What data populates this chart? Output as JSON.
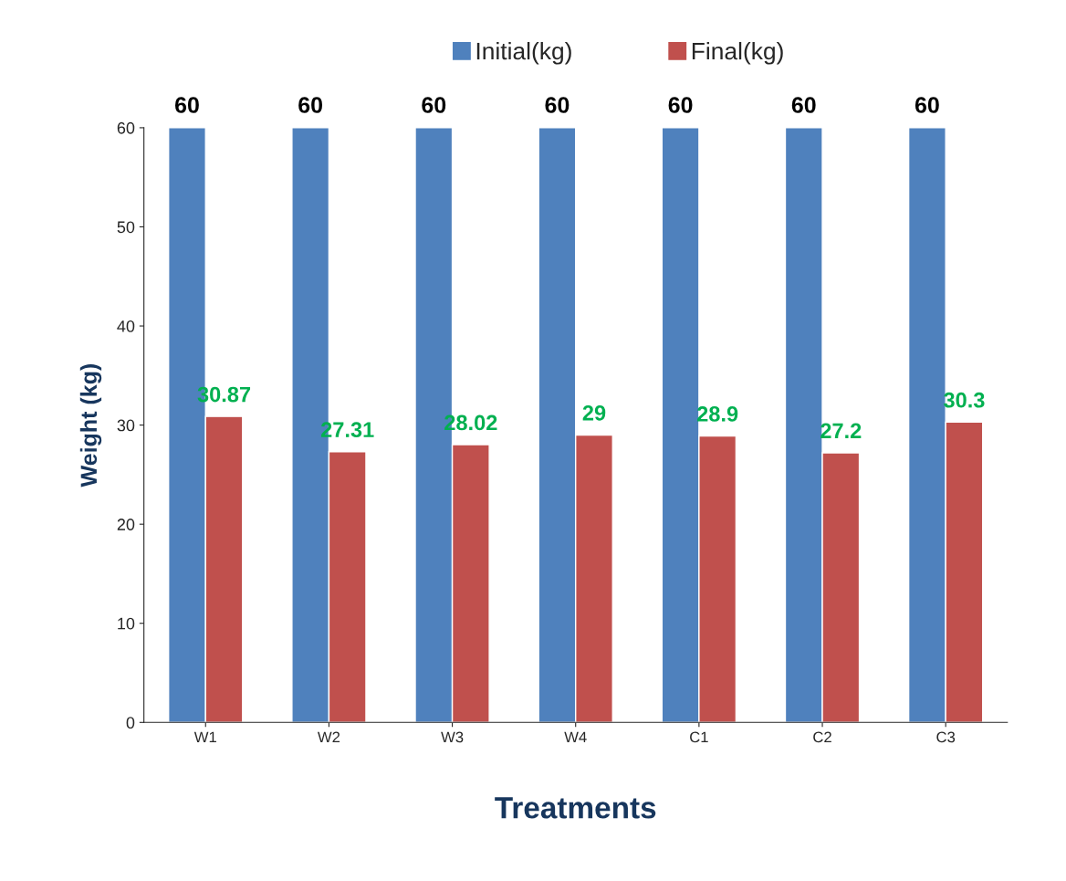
{
  "chart_data": {
    "type": "bar",
    "xlabel": "Treatments",
    "ylabel": "Weight (kg)",
    "categories": [
      "W1",
      "W2",
      "W3",
      "W4",
      "C1",
      "C2",
      "C3"
    ],
    "series": [
      {
        "name": "Initial(kg)",
        "color": "#4f81bd",
        "values": [
          60,
          60,
          60,
          60,
          60,
          60,
          60
        ]
      },
      {
        "name": "Final(kg)",
        "color": "#c0504d",
        "values": [
          30.87,
          27.31,
          28.02,
          29,
          28.9,
          27.2,
          30.3
        ]
      }
    ],
    "ylim": [
      0,
      60
    ],
    "yticks": [
      0,
      10,
      20,
      30,
      40,
      50,
      60
    ],
    "grid": false,
    "legend": "top",
    "data_labels": true
  }
}
